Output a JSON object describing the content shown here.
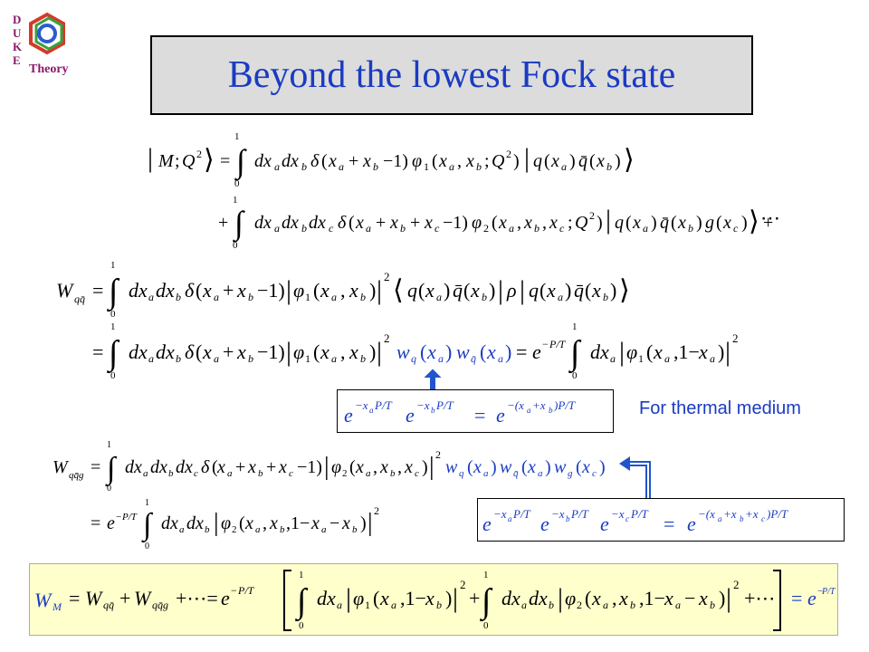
{
  "title": "Beyond the lowest Fock state",
  "logo": {
    "letters": [
      "D",
      "U",
      "K",
      "E"
    ],
    "word": "Theory"
  },
  "annotation": "For thermal medium",
  "colors": {
    "title": "#1a3bc2",
    "accent": "#1a3bc2",
    "arrow": "#2255cc",
    "highlight": "#ffffcc"
  }
}
